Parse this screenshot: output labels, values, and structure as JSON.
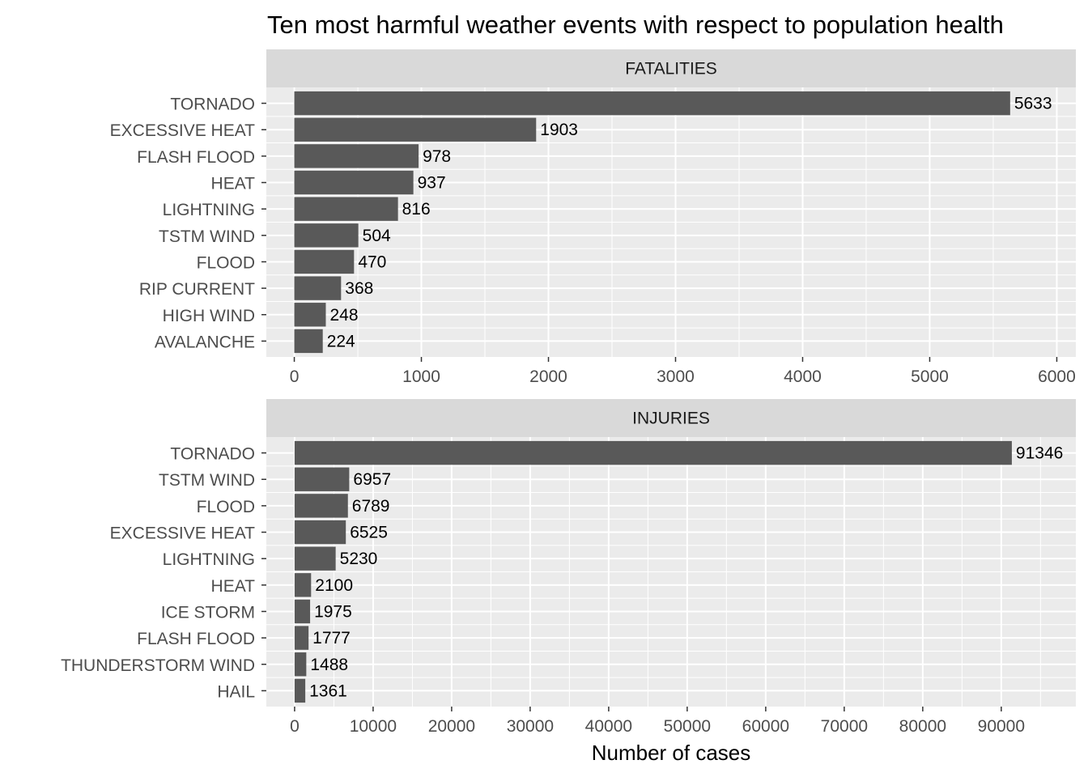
{
  "chart_data": [
    {
      "type": "bar",
      "orientation": "horizontal",
      "panel": "FATALITIES",
      "title": "Ten most harmful weather events with respect to population health",
      "categories": [
        "TORNADO",
        "EXCESSIVE HEAT",
        "FLASH FLOOD",
        "HEAT",
        "LIGHTNING",
        "TSTM WIND",
        "FLOOD",
        "RIP CURRENT",
        "HIGH WIND",
        "AVALANCHE"
      ],
      "values": [
        5633,
        1903,
        978,
        937,
        816,
        504,
        470,
        368,
        248,
        224
      ],
      "xlim": [
        -220,
        6150
      ],
      "xticks": [
        0,
        1000,
        2000,
        3000,
        4000,
        5000,
        6000
      ],
      "grid": true,
      "bar_color": "#595959"
    },
    {
      "type": "bar",
      "orientation": "horizontal",
      "panel": "INJURIES",
      "categories": [
        "TORNADO",
        "TSTM WIND",
        "FLOOD",
        "EXCESSIVE HEAT",
        "LIGHTNING",
        "HEAT",
        "ICE STORM",
        "FLASH FLOOD",
        "THUNDERSTORM WIND",
        "HAIL"
      ],
      "values": [
        91346,
        6957,
        6789,
        6525,
        5230,
        2100,
        1975,
        1777,
        1488,
        1361
      ],
      "xlim": [
        -3600,
        99500
      ],
      "xticks": [
        0,
        10000,
        20000,
        30000,
        40000,
        50000,
        60000,
        70000,
        80000,
        90000
      ],
      "xlabel": "Number of cases",
      "grid": true,
      "bar_color": "#595959"
    }
  ],
  "colors": {
    "panel_background": "#ebebeb",
    "strip_background": "#d9d9d9",
    "grid": "#ffffff",
    "bar": "#595959"
  }
}
